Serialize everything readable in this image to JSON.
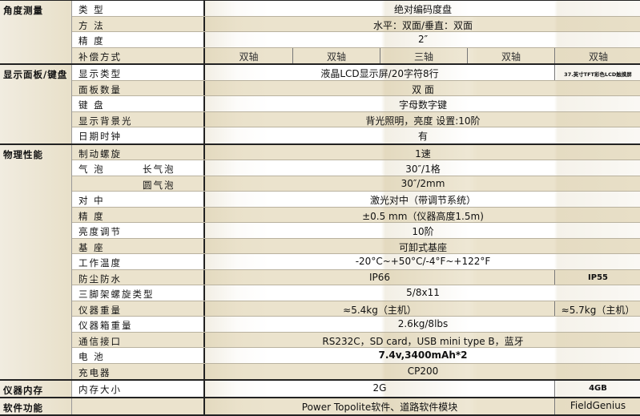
{
  "sections": [
    {
      "category": "角度测量",
      "rows": [
        {
          "label": "类 型",
          "values": [
            "绝对编码度盘"
          ]
        },
        {
          "label": "方 法",
          "values": [
            "水平：双面/垂直：双面"
          ]
        },
        {
          "label": "精 度",
          "values": [
            "2″"
          ]
        },
        {
          "label": "补偿方式",
          "values": [
            "双轴",
            "双轴",
            "三轴",
            "双轴",
            "双轴"
          ]
        }
      ]
    },
    {
      "category": "显示面板/键盘",
      "rows": [
        {
          "label": "显示类型",
          "values": [
            "液晶LCD显示屏/20字符8行",
            "37.英寸TFT彩色LCD触摸屏"
          ]
        },
        {
          "label": "面板数量",
          "values": [
            "双 面"
          ]
        },
        {
          "label": "键 盘",
          "values": [
            "字母数字键"
          ]
        },
        {
          "label": "显示背景光",
          "values": [
            "背光照明，亮度 设置:10阶"
          ]
        },
        {
          "label": "日期时钟",
          "values": [
            "有"
          ]
        }
      ]
    },
    {
      "category": "物理性能",
      "rows": [
        {
          "label": "制动螺旋",
          "values": [
            "1速"
          ]
        },
        {
          "label": "气 泡",
          "sublabel": "长气泡",
          "values": [
            "30″/1格"
          ]
        },
        {
          "label": "",
          "sublabel": "圆气泡",
          "values": [
            "30″/2mm"
          ]
        },
        {
          "label": "对 中",
          "values": [
            "激光对中（带调节系统）"
          ]
        },
        {
          "label": "精 度",
          "values": [
            "±0.5 mm（仪器高度1.5m)"
          ]
        },
        {
          "label": "亮度调节",
          "values": [
            "10阶"
          ]
        },
        {
          "label": "基 座",
          "values": [
            "可卸式基座"
          ]
        },
        {
          "label": "工作温度",
          "values": [
            "-20°C~+50°C/-4°F~+122°F"
          ]
        },
        {
          "label": "防尘防水",
          "values": [
            "IP66",
            "IP55"
          ]
        },
        {
          "label": "三脚架螺旋类型",
          "values": [
            "5/8x11"
          ]
        },
        {
          "label": "仪器重量",
          "values": [
            "≈5.4kg（主机）",
            "≈5.7kg（主机）"
          ]
        },
        {
          "label": "仪器箱重量",
          "values": [
            "2.6kg/8lbs"
          ]
        },
        {
          "label": "通信接口",
          "values": [
            "RS232C，SD card，USB mini type B，蓝牙"
          ]
        },
        {
          "label": "电 池",
          "values": [
            "7.4v,3400mAh*2"
          ],
          "bold": true
        },
        {
          "label": "充电器",
          "values": [
            "CP200"
          ]
        }
      ]
    },
    {
      "category": "仪器内存",
      "rows": [
        {
          "label": "内存大小",
          "values": [
            "2G",
            "4GB"
          ]
        }
      ]
    },
    {
      "category": "软件功能",
      "rows": [
        {
          "label": "",
          "values": [
            "Power Topolite软件、道路软件模块",
            "FieldGenius"
          ]
        }
      ]
    }
  ]
}
